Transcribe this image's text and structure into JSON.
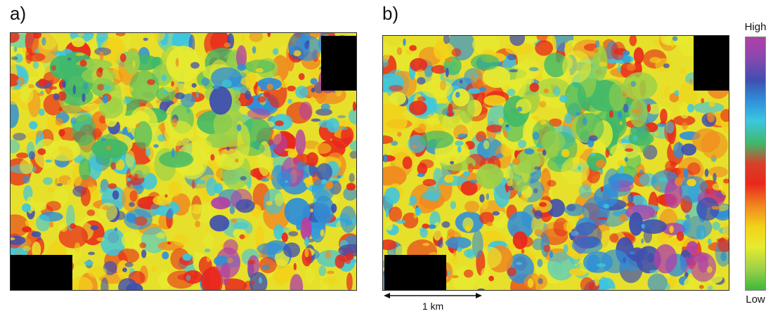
{
  "figure": {
    "panels": [
      {
        "label": "a)",
        "seed": 7
      },
      {
        "label": "b)",
        "seed": 19
      }
    ],
    "colorbar": {
      "high_label": "High",
      "low_label": "Low",
      "colors_top_to_bottom": [
        "#b040a8",
        "#8a48b0",
        "#3f4fb0",
        "#2f8fd8",
        "#3cc6e0",
        "#40b86a",
        "#d8402a",
        "#e8281c",
        "#f08a20",
        "#f2d21a",
        "#e6ea30",
        "#9ad04a",
        "#3cb83c"
      ]
    },
    "scale_bar": {
      "label": "1 km"
    }
  }
}
